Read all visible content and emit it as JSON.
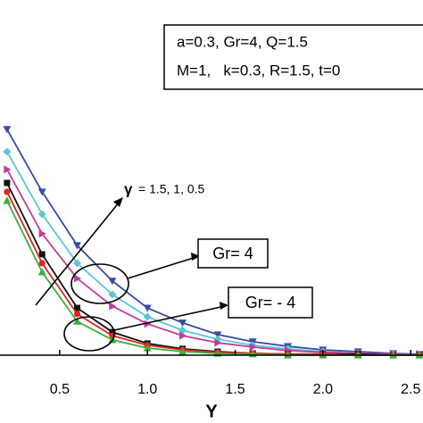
{
  "chart_data": {
    "type": "line",
    "x": [
      0.2,
      0.4,
      0.6,
      0.8,
      1.0,
      1.2,
      1.4,
      1.6,
      1.8,
      2.0,
      2.2,
      2.4,
      2.55
    ],
    "series": [
      {
        "color": "#3a4ca6",
        "marker": "triangle-down",
        "values": [
          0.636,
          0.46,
          0.309,
          0.209,
          0.133,
          0.091,
          0.058,
          0.038,
          0.025,
          0.015,
          0.01,
          0.005,
          0.003
        ]
      },
      {
        "color": "#5cc6d6",
        "marker": "diamond",
        "values": [
          0.573,
          0.397,
          0.259,
          0.171,
          0.108,
          0.07,
          0.045,
          0.028,
          0.018,
          0.01,
          0.005,
          0.003,
          0.003
        ]
      },
      {
        "color": "#c03c9c",
        "marker": "triangle-right",
        "values": [
          0.523,
          0.342,
          0.216,
          0.138,
          0.088,
          0.055,
          0.035,
          0.023,
          0.013,
          0.008,
          0.005,
          0.003,
          0.003
        ]
      },
      {
        "color": "#111111",
        "marker": "square",
        "values": [
          0.485,
          0.284,
          0.133,
          0.065,
          0.033,
          0.018,
          0.01,
          0.005,
          0.003,
          0.003,
          0.003,
          0,
          0
        ]
      },
      {
        "color": "#e02424",
        "marker": "circle",
        "values": [
          0.46,
          0.259,
          0.116,
          0.055,
          0.028,
          0.015,
          0.008,
          0.005,
          0.003,
          0.003,
          0,
          0,
          0
        ]
      },
      {
        "color": "#3cae3c",
        "marker": "triangle-up",
        "values": [
          0.435,
          0.234,
          0.095,
          0.043,
          0.02,
          0.01,
          0.005,
          0.003,
          0,
          0,
          0,
          0,
          0
        ]
      }
    ],
    "xlabel": "Y",
    "xlim": [
      0.16,
      2.57
    ],
    "ylim": [
      0,
      1
    ],
    "xticks": [
      0.5,
      {
        "value": 1.0,
        "label": "1.0"
      },
      1.5,
      {
        "value": 2.0,
        "label": "2.0"
      },
      2.5
    ],
    "annotations": {
      "params": [
        "a=0.3, Gr=4, Q=1.5",
        "M=1,   k=0.3, R=1.5, t=0"
      ],
      "gamma_symbol": "γ",
      "gamma": "= 1.5, 1, 0.5",
      "gr_pos": "Gr= 4",
      "gr_neg": "Gr= - 4"
    }
  }
}
